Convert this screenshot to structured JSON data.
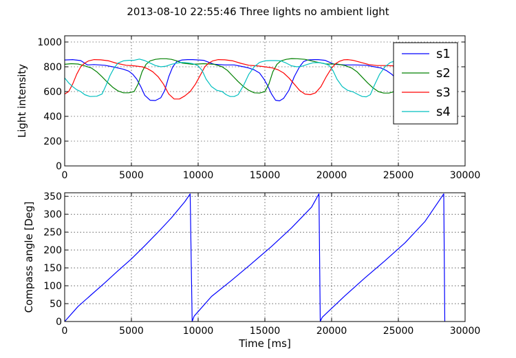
{
  "figure": {
    "title": "2013-08-10 22:55:46 Three lights no ambient light"
  },
  "chart_data": [
    {
      "type": "line",
      "title": "",
      "xlabel": "",
      "ylabel": "Light intensity",
      "xlim": [
        0,
        30000
      ],
      "ylim": [
        0,
        1050
      ],
      "xticks": [
        0,
        5000,
        10000,
        15000,
        20000,
        25000,
        30000
      ],
      "yticks": [
        0,
        200,
        400,
        600,
        800,
        1000
      ],
      "grid": true,
      "legend": {
        "placement": "top-right",
        "entries": [
          "s1",
          "s2",
          "s3",
          "s4"
        ]
      },
      "series": [
        {
          "name": "s1",
          "color": "#0000ff",
          "x": [
            0,
            600,
            1200,
            1700,
            2200,
            3000,
            3600,
            4000,
            4400,
            4800,
            5100,
            5400,
            5700,
            6000,
            6400,
            6800,
            7200,
            7500,
            7800,
            8100,
            8400,
            8800,
            9200,
            9600,
            10400,
            11200,
            12000,
            12700,
            13400,
            13800,
            14200,
            14600,
            14900,
            15200,
            15500,
            15800,
            16100,
            16400,
            16800,
            17200,
            17600,
            17900,
            18200,
            18600,
            19000,
            19500,
            20200,
            21000,
            21800,
            22600,
            23200,
            23700,
            24100,
            24500,
            24900,
            25200,
            25500,
            25800
          ],
          "y": [
            855,
            858,
            850,
            815,
            818,
            812,
            800,
            790,
            780,
            765,
            740,
            700,
            640,
            570,
            530,
            528,
            550,
            610,
            720,
            800,
            842,
            855,
            858,
            858,
            852,
            820,
            815,
            815,
            800,
            790,
            775,
            750,
            705,
            650,
            580,
            530,
            525,
            545,
            610,
            720,
            800,
            842,
            855,
            858,
            858,
            852,
            820,
            815,
            815,
            812,
            800,
            790,
            770,
            740,
            700,
            640,
            590,
            550
          ]
        },
        {
          "name": "s2",
          "color": "#008000",
          "x": [
            0,
            500,
            1000,
            1500,
            2000,
            2400,
            2800,
            3200,
            3600,
            4000,
            4400,
            4800,
            5200,
            5500,
            5800,
            6100,
            6400,
            6800,
            7200,
            7600,
            8000,
            8400,
            8800,
            9600,
            10400,
            11200,
            11800,
            12200,
            12600,
            13000,
            13400,
            13800,
            14200,
            14600,
            15000,
            15300,
            15600,
            15900,
            16200,
            16600,
            17000,
            17400,
            18000,
            18800,
            19600,
            20400,
            21000,
            21500,
            21900,
            22300,
            22700,
            23100,
            23500,
            23900,
            24300,
            24700,
            25100,
            25400,
            25700,
            26000
          ],
          "y": [
            820,
            825,
            822,
            808,
            790,
            760,
            720,
            675,
            635,
            605,
            590,
            590,
            600,
            660,
            760,
            820,
            848,
            860,
            865,
            865,
            860,
            848,
            830,
            820,
            825,
            820,
            800,
            770,
            725,
            680,
            640,
            610,
            590,
            588,
            600,
            660,
            760,
            820,
            848,
            860,
            866,
            865,
            860,
            840,
            822,
            822,
            810,
            790,
            760,
            715,
            670,
            630,
            600,
            588,
            588,
            600,
            665,
            760,
            820,
            848
          ]
        },
        {
          "name": "s3",
          "color": "#ff0000",
          "x": [
            0,
            300,
            600,
            900,
            1200,
            1500,
            1800,
            2200,
            2700,
            3300,
            3900,
            4600,
            5200,
            5800,
            6200,
            6600,
            7000,
            7400,
            7800,
            8200,
            8600,
            9000,
            9400,
            9800,
            10200,
            10500,
            10800,
            11100,
            11500,
            12000,
            12600,
            13200,
            13800,
            14400,
            15000,
            15600,
            16000,
            16400,
            16800,
            17200,
            17600,
            18000,
            18400,
            18800,
            19200,
            19600,
            20000,
            20300,
            20600,
            20900,
            21200,
            21600,
            22200,
            22800,
            23400,
            24000,
            24600,
            25200,
            25800
          ],
          "y": [
            580,
            600,
            660,
            740,
            800,
            830,
            848,
            858,
            856,
            848,
            828,
            812,
            808,
            800,
            785,
            760,
            720,
            660,
            580,
            540,
            540,
            565,
            600,
            660,
            740,
            800,
            830,
            848,
            858,
            856,
            848,
            828,
            812,
            808,
            800,
            790,
            775,
            750,
            710,
            660,
            610,
            580,
            575,
            590,
            640,
            720,
            790,
            825,
            845,
            856,
            858,
            852,
            835,
            818,
            810,
            810,
            808,
            800,
            790
          ]
        },
        {
          "name": "s4",
          "color": "#00bfbf",
          "x": [
            0,
            300,
            600,
            900,
            1200,
            1500,
            1900,
            2400,
            2800,
            3100,
            3400,
            3700,
            4000,
            4400,
            4800,
            5200,
            5600,
            6000,
            6400,
            6800,
            7200,
            7600,
            8000,
            8400,
            8800,
            9200,
            9600,
            10000,
            10300,
            10600,
            11000,
            11400,
            11800,
            12100,
            12400,
            12700,
            13000,
            13400,
            13800,
            14200,
            14600,
            15000,
            15400,
            15800,
            16200,
            16600,
            17000,
            17400,
            17800,
            18200,
            18600,
            19000,
            19400,
            19800,
            20100,
            20400,
            20800,
            21200,
            21600,
            22000,
            22300,
            22600,
            22900,
            23200,
            23600,
            24000,
            24400,
            24800,
            25200,
            25600,
            26000
          ],
          "y": [
            710,
            670,
            640,
            615,
            600,
            575,
            560,
            562,
            580,
            650,
            730,
            790,
            830,
            848,
            852,
            852,
            862,
            850,
            830,
            810,
            800,
            805,
            820,
            830,
            835,
            832,
            825,
            808,
            770,
            700,
            640,
            610,
            600,
            575,
            560,
            560,
            575,
            650,
            740,
            800,
            835,
            848,
            850,
            850,
            848,
            830,
            808,
            800,
            805,
            820,
            832,
            834,
            828,
            812,
            770,
            700,
            640,
            610,
            598,
            575,
            560,
            558,
            575,
            650,
            740,
            800,
            835,
            848,
            848,
            846,
            830
          ]
        }
      ]
    },
    {
      "type": "line",
      "title": "",
      "xlabel": "Time [ms]",
      "ylabel": "Compass angle [Deg]",
      "xlim": [
        0,
        30000
      ],
      "ylim": [
        0,
        360
      ],
      "xticks": [
        0,
        5000,
        10000,
        15000,
        20000,
        25000,
        30000
      ],
      "yticks": [
        0,
        50,
        100,
        150,
        200,
        250,
        300,
        350
      ],
      "grid": true,
      "series": [
        {
          "color": "#0000ff",
          "x": [
            0,
            1000,
            2000,
            3000,
            4000,
            5000,
            6000,
            7000,
            8000,
            9000,
            9400,
            9550,
            9700,
            11000,
            12500,
            14000,
            15500,
            17000,
            18500,
            19050,
            19150,
            19300,
            21000,
            22500,
            24000,
            25500,
            27000,
            28400,
            28480
          ],
          "y": [
            0,
            42,
            75,
            108,
            142,
            175,
            212,
            250,
            290,
            335,
            357,
            0,
            15,
            70,
            115,
            162,
            210,
            262,
            320,
            357,
            0,
            12,
            72,
            122,
            170,
            220,
            280,
            357,
            0
          ]
        }
      ]
    }
  ]
}
